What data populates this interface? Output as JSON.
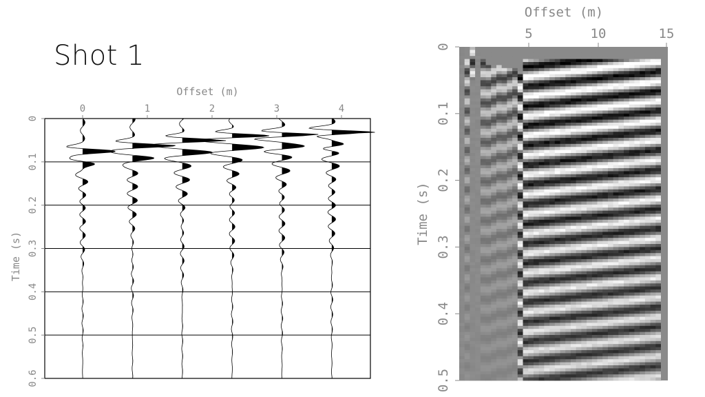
{
  "slide": {
    "title": "Shot 1"
  },
  "chart_data": [
    {
      "type": "wiggle",
      "xlabel": "Offset (m)",
      "ylabel": "Time (s)",
      "x_ticks": [
        "0",
        "1",
        "2",
        "3",
        "4"
      ],
      "y_ticks": [
        "0",
        "0.1",
        "0.2",
        "0.3",
        "0.4",
        "0.5",
        "0.6"
      ],
      "xlim": [
        -0.5,
        4.5
      ],
      "ylim": [
        0,
        0.6
      ],
      "grid": "horizontal",
      "trace_offsets": [
        0,
        0.77,
        1.54,
        2.31,
        3.08,
        3.85
      ],
      "first_break_times": [
        0.075,
        0.062,
        0.05,
        0.04,
        0.038,
        0.032
      ],
      "fill": "positive black"
    },
    {
      "type": "heatmap",
      "colormap": "gray",
      "xlabel": "Offset (m)",
      "ylabel": "Time (s)",
      "x_ticks": [
        "5",
        "10",
        "15"
      ],
      "y_ticks": [
        "0",
        "0.1",
        "0.2",
        "0.3",
        "0.4",
        "0.5"
      ],
      "xlim": [
        0,
        15
      ],
      "ylim": [
        0,
        0.5
      ],
      "trace_count": 38,
      "first_break_times": [
        0.02,
        0.02,
        0.02,
        0.02,
        0.02,
        0.025,
        0.025,
        0.025,
        0.03,
        0.03,
        0.03,
        0.035
      ]
    }
  ]
}
